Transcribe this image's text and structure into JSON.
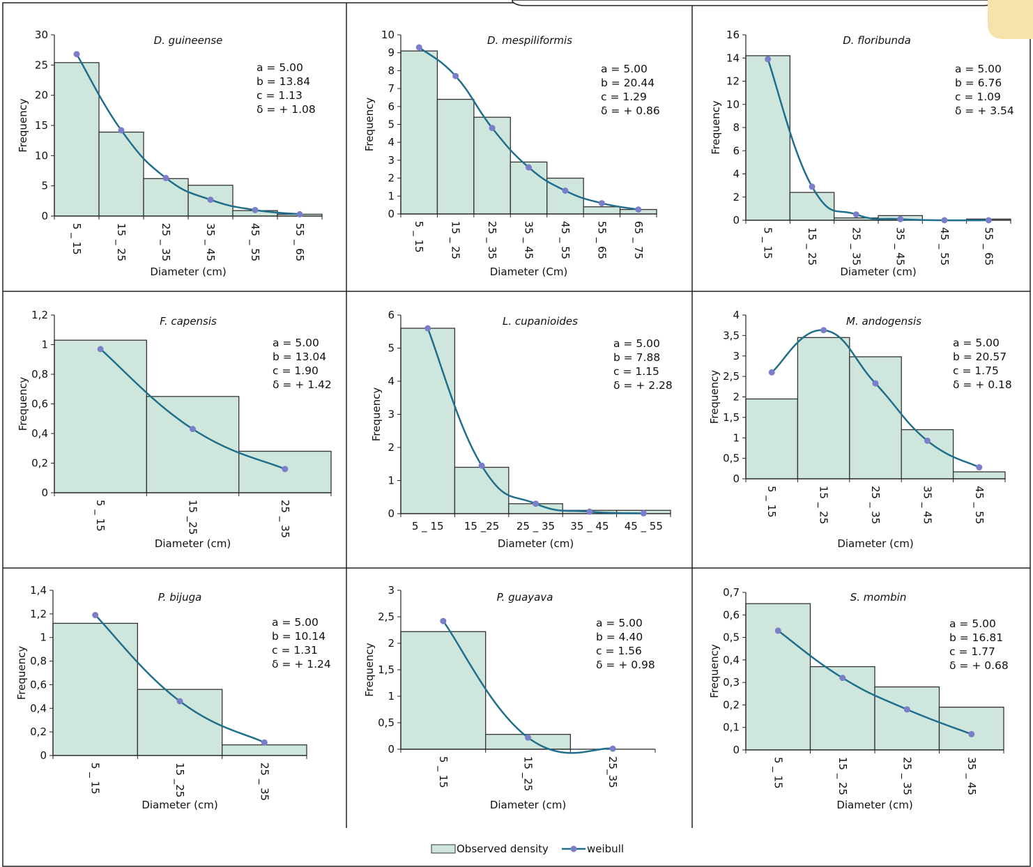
{
  "colors": {
    "bar_fill": "#cfe6dc",
    "bar_stroke": "#333333",
    "line": "#1f6e8c",
    "marker": "#7b7fc9",
    "tab_accent": "#f6e2ad"
  },
  "legend": {
    "observed_label": "Observed density",
    "weibull_label": "weibull"
  },
  "chart_data": [
    {
      "type": "bar",
      "title": "D. guineense",
      "xlabel": "Diameter (cm)",
      "ylabel": "Frequency",
      "categories": [
        "5 _ 15",
        "15 _ 25",
        "25 _ 35",
        "35 _ 45",
        "45 _ 55",
        "55 _ 65"
      ],
      "ylim": [
        0,
        30
      ],
      "yticks": [
        "0",
        "5",
        "10",
        "15",
        "20",
        "25",
        "30"
      ],
      "tick_rotation": 90,
      "observed": [
        25.4,
        13.9,
        6.2,
        5.1,
        0.9,
        0.3
      ],
      "weibull": [
        26.8,
        14.2,
        6.3,
        2.7,
        1.0,
        0.3
      ],
      "params": [
        "a = 5.00",
        "b = 13.84",
        "c = 1.13",
        "δ = + 1.08"
      ]
    },
    {
      "type": "bar",
      "title": "D. mespiliformis",
      "xlabel": "Diameter (Cm)",
      "ylabel": "Frequency",
      "categories": [
        "5 _ 15",
        "15 _ 25",
        "25 _ 35",
        "35 _ 45",
        "45 _ 55",
        "55 _ 65",
        "65 _ 75"
      ],
      "ylim": [
        0,
        10
      ],
      "yticks": [
        "0",
        "1",
        "2",
        "3",
        "4",
        "5",
        "6",
        "7",
        "8",
        "9",
        "10"
      ],
      "tick_rotation": 90,
      "observed": [
        9.1,
        6.4,
        5.4,
        2.9,
        2.0,
        0.4,
        0.25
      ],
      "weibull": [
        9.3,
        7.7,
        4.8,
        2.6,
        1.3,
        0.6,
        0.25
      ],
      "params": [
        "a = 5.00",
        "b = 20.44",
        "c = 1.29",
        "δ = + 0.86"
      ]
    },
    {
      "type": "bar",
      "title": "D. floribunda",
      "xlabel": "Diameter (cm)",
      "ylabel": "Frequency",
      "categories": [
        "5 _ 15",
        "15 _ 25",
        "25 _ 35",
        "35 _ 45",
        "45 _ 55",
        "55 _ 65"
      ],
      "ylim": [
        0,
        16
      ],
      "yticks": [
        "0",
        "2",
        "4",
        "6",
        "8",
        "10",
        "12",
        "14",
        "16"
      ],
      "tick_rotation": 90,
      "observed": [
        14.2,
        2.4,
        0.2,
        0.4,
        0.0,
        0.1
      ],
      "weibull": [
        13.9,
        2.9,
        0.5,
        0.1,
        0.0,
        0.0
      ],
      "params": [
        "a = 5.00",
        "b = 6.76",
        "c = 1.09",
        "δ = + 3.54"
      ]
    },
    {
      "type": "bar",
      "title": "F. capensis",
      "xlabel": "Diameter (cm)",
      "ylabel": "Frequency",
      "categories": [
        "5 _ 15",
        "15 _25",
        "25 _ 35"
      ],
      "ylim": [
        0,
        1.2
      ],
      "yticks": [
        "0",
        "0,2",
        "0,4",
        "0,6",
        "0,8",
        "1",
        "1,2"
      ],
      "tick_rotation": 90,
      "observed": [
        1.03,
        0.65,
        0.28
      ],
      "weibull": [
        0.97,
        0.43,
        0.16
      ],
      "params": [
        "a = 5.00",
        "b = 13.04",
        "c = 1.90",
        "δ = + 1.42"
      ]
    },
    {
      "type": "bar",
      "title": "L. cupanioides",
      "xlabel": "Diameter (cm)",
      "ylabel": "Frequency",
      "categories": [
        "5 _ 15",
        "15 _25",
        "25 _ 35",
        "35 _ 45",
        "45 _ 55"
      ],
      "ylim": [
        0,
        6
      ],
      "yticks": [
        "0",
        "1",
        "2",
        "3",
        "4",
        "5",
        "6"
      ],
      "tick_rotation": 0,
      "observed": [
        5.6,
        1.4,
        0.3,
        0.1,
        0.1
      ],
      "weibull": [
        5.6,
        1.45,
        0.3,
        0.06,
        0.01
      ],
      "params": [
        "a = 5.00",
        "b = 7.88",
        "c = 1.15",
        "δ = + 2.28"
      ]
    },
    {
      "type": "bar",
      "title": "M. andogensis",
      "xlabel": "Diameter (cm)",
      "ylabel": "Frequency",
      "categories": [
        "5 _ 15",
        "15 _ 25",
        "25 _ 35",
        "35 _ 45",
        "45 _ 55"
      ],
      "ylim": [
        0,
        4
      ],
      "yticks": [
        "0",
        "0,5",
        "1",
        "1,5",
        "2",
        "2,5",
        "3",
        "3,5",
        "4"
      ],
      "tick_rotation": 90,
      "observed": [
        1.95,
        3.45,
        2.98,
        1.2,
        0.17
      ],
      "weibull": [
        2.6,
        3.63,
        2.33,
        0.93,
        0.28
      ],
      "params": [
        "a = 5.00",
        "b = 20.57",
        "c = 1.75",
        "δ = + 0.18"
      ]
    },
    {
      "type": "bar",
      "title": "P. bijuga",
      "xlabel": "Diameter (cm)",
      "ylabel": "Frequency",
      "categories": [
        "5 _ 15",
        "15 _25",
        "25 _ 35"
      ],
      "ylim": [
        0,
        1.4
      ],
      "yticks": [
        "0",
        "0,2",
        "0,4",
        "0,6",
        "0,8",
        "1",
        "1,2",
        "1,4"
      ],
      "tick_rotation": 90,
      "observed": [
        1.12,
        0.56,
        0.09
      ],
      "weibull": [
        1.19,
        0.46,
        0.11
      ],
      "params": [
        "a = 5.00",
        "b = 10.14",
        "c = 1.31",
        "δ = + 1.24"
      ]
    },
    {
      "type": "bar",
      "title": "P. guayava",
      "xlabel": "Diameter (cm)",
      "ylabel": "Frequency",
      "categories": [
        "5 _ 15",
        "15 _25",
        "25_35"
      ],
      "ylim": [
        0,
        3
      ],
      "yticks": [
        "0",
        "0,5",
        "1",
        "1,5",
        "2",
        "2,5",
        "3"
      ],
      "tick_rotation": 90,
      "observed": [
        2.22,
        0.28,
        0.0
      ],
      "weibull": [
        2.42,
        0.22,
        0.01
      ],
      "params": [
        "a = 5.00",
        "b = 4.40",
        "c = 1.56",
        "δ = + 0.98"
      ]
    },
    {
      "type": "bar",
      "title": "S. mombin",
      "xlabel": "Diameter (cm)",
      "ylabel": "Frequency",
      "categories": [
        "5 _ 15",
        "15 _ 25",
        "25 _ 35",
        "35 _ 45"
      ],
      "ylim": [
        0,
        0.7
      ],
      "yticks": [
        "0",
        "0,1",
        "0,2",
        "0,3",
        "0,4",
        "0,5",
        "0,6",
        "0,7"
      ],
      "tick_rotation": 90,
      "observed": [
        0.65,
        0.37,
        0.28,
        0.19
      ],
      "weibull": [
        0.53,
        0.32,
        0.18,
        0.07
      ],
      "params": [
        "a = 5.00",
        "b = 16.81",
        "c = 1.77",
        "δ = + 0.68"
      ]
    }
  ]
}
